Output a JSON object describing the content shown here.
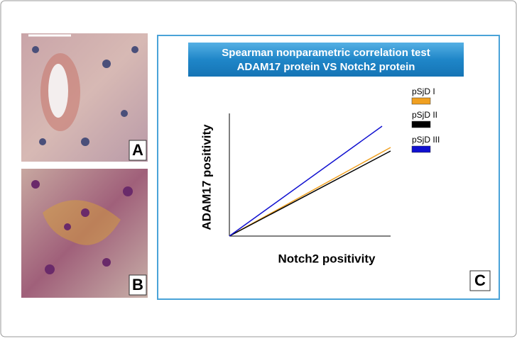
{
  "panels": {
    "a": "A",
    "b": "B",
    "c": "C"
  },
  "chart": {
    "title": [
      "Spearman nonparametric correlation test",
      "ADAM17 protein VS Notch2 protein"
    ],
    "y_label": "ADAM17 positivity",
    "x_label": "Notch2 positivity",
    "series": [
      {
        "name": "pSjD I",
        "color": "#f0a020"
      },
      {
        "name": "pSjD II",
        "color": "#000000"
      },
      {
        "name": "pSjD III",
        "color": "#1010d0"
      }
    ]
  }
}
